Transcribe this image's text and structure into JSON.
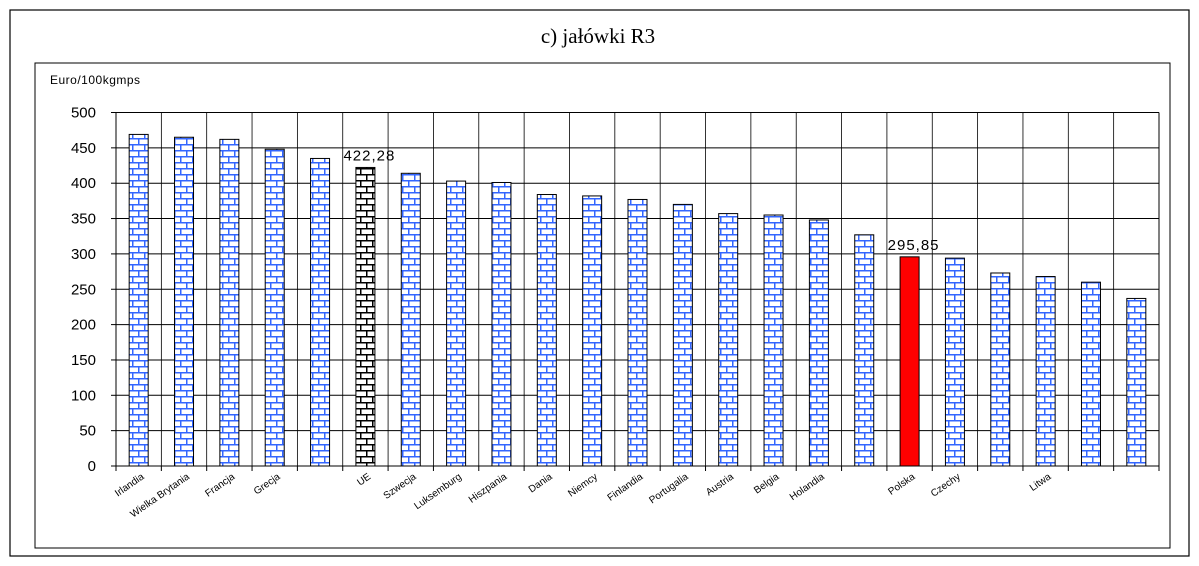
{
  "chart_data": {
    "type": "bar",
    "title": "c) jałówki R3",
    "ylabel": "Euro/100kgmps",
    "xlabel": "",
    "ylim": [
      0,
      500
    ],
    "yticks": [
      0,
      50,
      100,
      150,
      200,
      250,
      300,
      350,
      400,
      450,
      500
    ],
    "grid": true,
    "legend": "none",
    "categories": [
      "Irlandia",
      "Wielka Brytania",
      "Francja",
      "Grecja",
      "",
      "UE",
      "Szwecja",
      "Luksemburg",
      "Hiszpania",
      "Dania",
      "Niemcy",
      "Finlandia",
      "Portugalia",
      "Austria",
      "Belgia",
      "Holandia",
      "",
      "Polska",
      "Czechy",
      "",
      "Litwa",
      "",
      ""
    ],
    "values": [
      469,
      465,
      462,
      448,
      435,
      422.28,
      414,
      403,
      401,
      384,
      382,
      377,
      370,
      357,
      355,
      348,
      327,
      295.85,
      294,
      273,
      268,
      260,
      237
    ],
    "highlights": [
      {
        "category": "UE",
        "style": "black-brick"
      },
      {
        "category": "Polska",
        "style": "red"
      }
    ],
    "data_labels": [
      {
        "category": "UE",
        "text": "422,28"
      },
      {
        "category": "Polska",
        "text": "295,85"
      }
    ],
    "colors": {
      "bar_fill": "#ffffff",
      "bar_pattern": "#3366ff",
      "ue_pattern": "#000000",
      "polska_fill": "#ff0000",
      "grid": "#000000",
      "frame": "#000000"
    }
  }
}
